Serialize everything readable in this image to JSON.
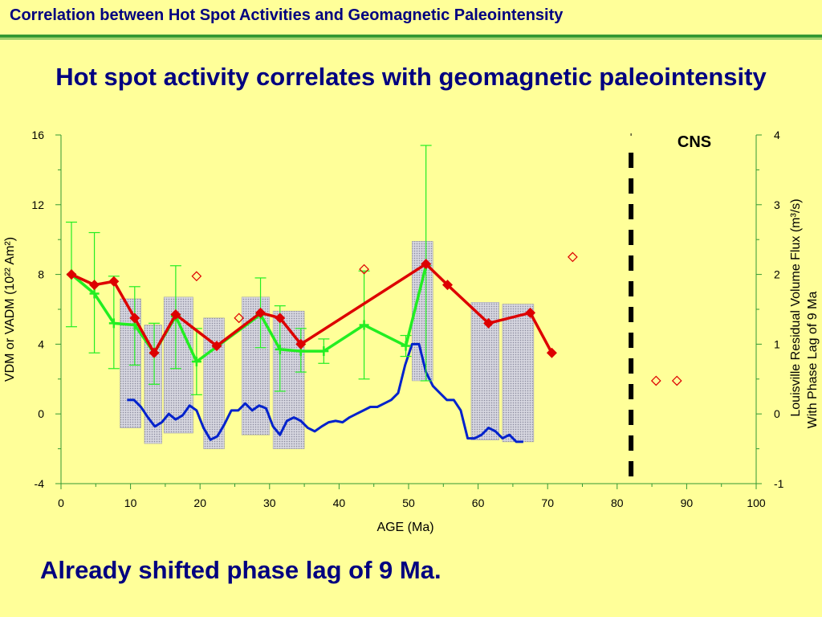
{
  "header": {
    "title": "Correlation between Hot Spot Activities and Geomagnetic Paleointensity"
  },
  "headline": "Hot spot activity correlates with geomagnetic paleointensity",
  "caption": "Already shifted phase lag of 9 Ma.",
  "chart_data": {
    "type": "line",
    "xlabel": "AGE (Ma)",
    "ylabel": "VDM or VADM (10²² Am²)",
    "y2label_line1": "Louisville Residual Volume Flux (m³/s)",
    "y2label_line2": "With Phase Lag of 9 Ma",
    "xlim": [
      0,
      100
    ],
    "ylim": [
      -4,
      16
    ],
    "y2lim": [
      -1,
      4
    ],
    "xticks": [
      0,
      10,
      20,
      30,
      40,
      50,
      60,
      70,
      80,
      90,
      100
    ],
    "yticks": [
      -4,
      0,
      4,
      8,
      12,
      16
    ],
    "y2ticks": [
      -1,
      0,
      1,
      2,
      3,
      4
    ],
    "grid": false,
    "annotations": {
      "cns_label": "CNS",
      "cns_boundary_age": 82
    },
    "colors": {
      "red_series": "#dd0000",
      "green_series": "#22ee22",
      "blue_series": "#0022cc",
      "bars": "#b8b8c8",
      "frame": "#339933",
      "boundary": "#000000"
    },
    "red_series": {
      "x": [
        1.5,
        4.8,
        7.6,
        10.6,
        13.4,
        16.5,
        22.4,
        28.7,
        31.5,
        34.5,
        52.5,
        55.6,
        61.5,
        67.5,
        70.6
      ],
      "y": [
        8.0,
        7.4,
        7.6,
        5.5,
        3.5,
        5.7,
        3.9,
        5.8,
        5.5,
        4.0,
        8.6,
        7.4,
        5.2,
        5.8,
        3.5
      ]
    },
    "red_open_points": {
      "x": [
        19.5,
        25.6,
        43.6,
        73.6,
        85.6,
        88.6
      ],
      "y": [
        7.9,
        5.5,
        8.3,
        9.0,
        1.9,
        1.9
      ]
    },
    "green_series": {
      "x": [
        1.5,
        4.8,
        7.6,
        10.6,
        13.4,
        16.5,
        19.5,
        28.7,
        31.5,
        34.5,
        37.8,
        43.6,
        49.6,
        52.5
      ],
      "y": [
        8.0,
        6.9,
        5.2,
        5.1,
        3.5,
        5.6,
        3.0,
        5.7,
        3.7,
        3.6,
        3.6,
        5.1,
        3.9,
        8.5
      ],
      "err_low": [
        5.0,
        3.5,
        2.6,
        2.8,
        1.7,
        2.6,
        1.1,
        3.8,
        1.3,
        2.4,
        2.9,
        2.0,
        3.3,
        1.9
      ],
      "err_high": [
        11.0,
        10.4,
        7.9,
        7.3,
        5.2,
        8.5,
        4.9,
        7.8,
        6.2,
        4.9,
        4.3,
        8.2,
        4.5,
        15.4
      ]
    },
    "blue_series": {
      "x": [
        9.5,
        10.5,
        11.5,
        12.5,
        13.5,
        14.5,
        15.5,
        16.5,
        17.5,
        18.5,
        19.5,
        20.5,
        21.5,
        22.5,
        23.5,
        24.5,
        25.5,
        26.5,
        27.5,
        28.5,
        29.5,
        30.5,
        31.5,
        32.5,
        33.5,
        34.5,
        35.5,
        36.5,
        37.5,
        38.5,
        39.5,
        40.5,
        41.5,
        42.5,
        43.5,
        44.5,
        45.5,
        46.5,
        47.5,
        48.5,
        49.5,
        50.5,
        51.5,
        52.5,
        53.5,
        54.5,
        55.5,
        56.5,
        57.5,
        58.5,
        59.5,
        60.5,
        61.5,
        62.5,
        63.5,
        64.5,
        65.5,
        66.5
      ],
      "y": [
        0.2,
        0.2,
        0.1,
        -0.05,
        -0.18,
        -0.12,
        0.0,
        -0.08,
        -0.02,
        0.12,
        0.05,
        -0.2,
        -0.37,
        -0.32,
        -0.15,
        0.05,
        0.05,
        0.15,
        0.05,
        0.12,
        0.08,
        -0.18,
        -0.3,
        -0.1,
        -0.05,
        -0.1,
        -0.2,
        -0.25,
        -0.18,
        -0.12,
        -0.1,
        -0.12,
        -0.05,
        0.0,
        0.05,
        0.1,
        0.1,
        0.15,
        0.2,
        0.3,
        0.7,
        1.0,
        1.0,
        0.6,
        0.4,
        0.3,
        0.2,
        0.2,
        0.05,
        -0.35,
        -0.35,
        -0.3,
        -0.2,
        -0.25,
        -0.35,
        -0.3,
        -0.4,
        -0.4
      ]
    },
    "bars": [
      {
        "x1": 8.5,
        "x2": 11.5,
        "y_top": 6.6,
        "y_bottom": -0.8
      },
      {
        "x1": 12.0,
        "x2": 14.5,
        "y_top": 5.1,
        "y_bottom": -1.7
      },
      {
        "x1": 14.8,
        "x2": 19.0,
        "y_top": 6.7,
        "y_bottom": -1.1
      },
      {
        "x1": 20.5,
        "x2": 23.5,
        "y_top": 5.5,
        "y_bottom": -2.0
      },
      {
        "x1": 26.0,
        "x2": 30.0,
        "y_top": 6.7,
        "y_bottom": -1.2
      },
      {
        "x1": 30.5,
        "x2": 35.0,
        "y_top": 5.9,
        "y_bottom": -2.0
      },
      {
        "x1": 50.5,
        "x2": 53.5,
        "y_top": 9.9,
        "y_bottom": 1.9
      },
      {
        "x1": 59.0,
        "x2": 63.0,
        "y_top": 6.4,
        "y_bottom": -1.5
      },
      {
        "x1": 63.5,
        "x2": 68.0,
        "y_top": 6.3,
        "y_bottom": -1.6
      }
    ]
  }
}
